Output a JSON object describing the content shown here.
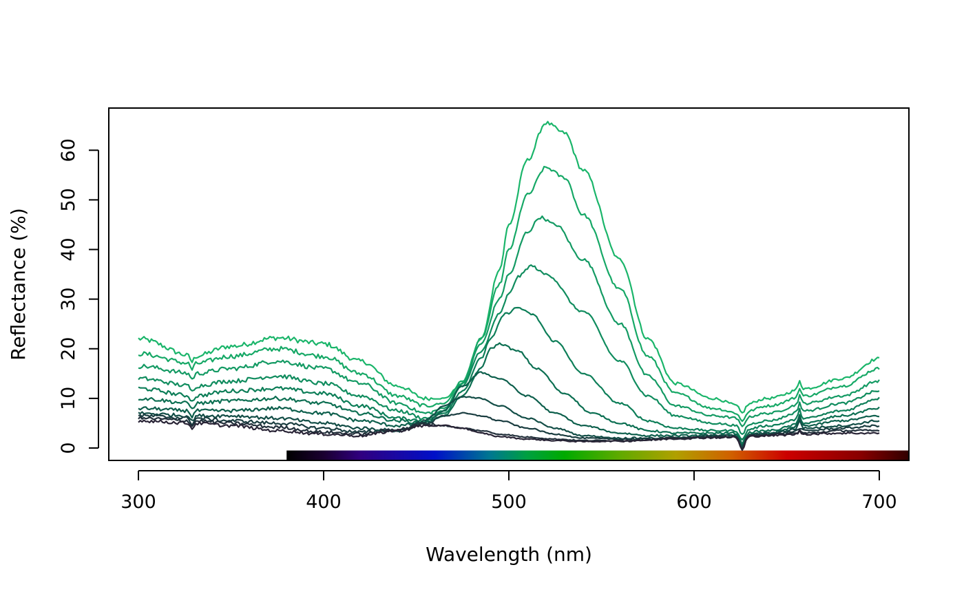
{
  "chart_data": {
    "type": "line",
    "title": "",
    "xlabel": "Wavelength (nm)",
    "ylabel": "Reflectance (%)",
    "xlim": [
      284,
      716
    ],
    "ylim": [
      -2.5,
      68.5
    ],
    "x_ticks": [
      300,
      400,
      500,
      600,
      700
    ],
    "x_tick_labels": [
      "300",
      "400",
      "500",
      "600",
      "700"
    ],
    "y_ticks": [
      0,
      10,
      20,
      30,
      40,
      50,
      60
    ],
    "y_tick_labels": [
      "0",
      "10",
      "20",
      "30",
      "40",
      "50",
      "60"
    ],
    "grid": false,
    "legend": "none",
    "x_range": [
      300,
      700
    ],
    "spectrum_bar": {
      "from_nm": 380,
      "to_nm": 716,
      "stops": [
        {
          "nm": 380,
          "color": "#000000"
        },
        {
          "nm": 400,
          "color": "#1a0030"
        },
        {
          "nm": 420,
          "color": "#300080"
        },
        {
          "nm": 460,
          "color": "#0010c8"
        },
        {
          "nm": 490,
          "color": "#007890"
        },
        {
          "nm": 510,
          "color": "#00a040"
        },
        {
          "nm": 530,
          "color": "#00aa00"
        },
        {
          "nm": 560,
          "color": "#60aa00"
        },
        {
          "nm": 590,
          "color": "#b0a000"
        },
        {
          "nm": 620,
          "color": "#d06000"
        },
        {
          "nm": 650,
          "color": "#cc0000"
        },
        {
          "nm": 690,
          "color": "#880000"
        },
        {
          "nm": 716,
          "color": "#300000"
        }
      ]
    },
    "series": [
      {
        "color": "#1ab56a",
        "values": [
          [
            300,
            22
          ],
          [
            330,
            18.5
          ],
          [
            350,
            20.5
          ],
          [
            375,
            22.2
          ],
          [
            400,
            21
          ],
          [
            420,
            17.5
          ],
          [
            440,
            12.5
          ],
          [
            455,
            10
          ],
          [
            465,
            10
          ],
          [
            475,
            13
          ],
          [
            485,
            22
          ],
          [
            495,
            36
          ],
          [
            500,
            45
          ],
          [
            510,
            58
          ],
          [
            520,
            65.5
          ],
          [
            530,
            63.5
          ],
          [
            540,
            56
          ],
          [
            560,
            38
          ],
          [
            575,
            22
          ],
          [
            590,
            13
          ],
          [
            610,
            10
          ],
          [
            625,
            8.5
          ],
          [
            640,
            10
          ],
          [
            660,
            12
          ],
          [
            680,
            14
          ],
          [
            700,
            18
          ]
        ]
      },
      {
        "color": "#16a866",
        "values": [
          [
            300,
            19
          ],
          [
            330,
            17
          ],
          [
            350,
            18.5
          ],
          [
            375,
            20
          ],
          [
            400,
            18.5
          ],
          [
            420,
            15
          ],
          [
            440,
            10.5
          ],
          [
            455,
            8.5
          ],
          [
            465,
            9
          ],
          [
            475,
            13.5
          ],
          [
            485,
            22
          ],
          [
            495,
            33
          ],
          [
            500,
            40
          ],
          [
            510,
            51
          ],
          [
            520,
            56.5
          ],
          [
            530,
            54.5
          ],
          [
            540,
            47
          ],
          [
            560,
            32
          ],
          [
            575,
            18.5
          ],
          [
            590,
            11
          ],
          [
            610,
            8
          ],
          [
            625,
            7
          ],
          [
            640,
            8.5
          ],
          [
            660,
            10.5
          ],
          [
            680,
            12.5
          ],
          [
            700,
            16
          ]
        ]
      },
      {
        "color": "#139a63",
        "values": [
          [
            300,
            16.5
          ],
          [
            330,
            15
          ],
          [
            350,
            16
          ],
          [
            375,
            17.5
          ],
          [
            400,
            16
          ],
          [
            420,
            13
          ],
          [
            440,
            9
          ],
          [
            455,
            7
          ],
          [
            465,
            8
          ],
          [
            475,
            13
          ],
          [
            485,
            21
          ],
          [
            495,
            30
          ],
          [
            500,
            35
          ],
          [
            510,
            43.5
          ],
          [
            517,
            46.5
          ],
          [
            525,
            45
          ],
          [
            540,
            38
          ],
          [
            560,
            25
          ],
          [
            575,
            14.5
          ],
          [
            590,
            8.5
          ],
          [
            610,
            6.5
          ],
          [
            625,
            6
          ],
          [
            640,
            7
          ],
          [
            660,
            9
          ],
          [
            680,
            10.5
          ],
          [
            700,
            13.5
          ]
        ]
      },
      {
        "color": "#108c5e",
        "values": [
          [
            300,
            14
          ],
          [
            330,
            12.5
          ],
          [
            350,
            13.5
          ],
          [
            375,
            14.5
          ],
          [
            400,
            13
          ],
          [
            420,
            10.5
          ],
          [
            440,
            7.5
          ],
          [
            455,
            6
          ],
          [
            465,
            7.5
          ],
          [
            475,
            12.5
          ],
          [
            485,
            19.5
          ],
          [
            495,
            27
          ],
          [
            500,
            31
          ],
          [
            505,
            34.5
          ],
          [
            512,
            36.7
          ],
          [
            520,
            35
          ],
          [
            540,
            27.5
          ],
          [
            560,
            17.5
          ],
          [
            575,
            10.5
          ],
          [
            590,
            6.5
          ],
          [
            610,
            5
          ],
          [
            625,
            4.5
          ],
          [
            640,
            5.5
          ],
          [
            660,
            7.5
          ],
          [
            680,
            9
          ],
          [
            700,
            11.5
          ]
        ]
      },
      {
        "color": "#0d7e58",
        "values": [
          [
            300,
            12
          ],
          [
            330,
            10.5
          ],
          [
            350,
            11.5
          ],
          [
            375,
            12
          ],
          [
            400,
            11
          ],
          [
            420,
            8.5
          ],
          [
            440,
            6
          ],
          [
            455,
            5.5
          ],
          [
            465,
            7
          ],
          [
            475,
            11.5
          ],
          [
            485,
            18
          ],
          [
            490,
            22
          ],
          [
            498,
            27
          ],
          [
            505,
            28.3
          ],
          [
            512,
            27
          ],
          [
            525,
            21.5
          ],
          [
            540,
            15
          ],
          [
            560,
            9
          ],
          [
            575,
            5.5
          ],
          [
            590,
            4
          ],
          [
            610,
            3.5
          ],
          [
            625,
            3.5
          ],
          [
            640,
            4.5
          ],
          [
            660,
            6
          ],
          [
            680,
            7.5
          ],
          [
            700,
            10
          ]
        ]
      },
      {
        "color": "#0c6f52",
        "values": [
          [
            300,
            10
          ],
          [
            330,
            9
          ],
          [
            350,
            9.5
          ],
          [
            375,
            10
          ],
          [
            400,
            9
          ],
          [
            420,
            7
          ],
          [
            440,
            5.5
          ],
          [
            455,
            5
          ],
          [
            465,
            6.5
          ],
          [
            475,
            10.5
          ],
          [
            485,
            16
          ],
          [
            490,
            20
          ],
          [
            495,
            21
          ],
          [
            505,
            19.5
          ],
          [
            515,
            16
          ],
          [
            530,
            11
          ],
          [
            545,
            7
          ],
          [
            560,
            5
          ],
          [
            575,
            3.5
          ],
          [
            590,
            3
          ],
          [
            610,
            3
          ],
          [
            625,
            3
          ],
          [
            640,
            3.5
          ],
          [
            660,
            5
          ],
          [
            680,
            6.5
          ],
          [
            700,
            8
          ]
        ]
      },
      {
        "color": "#0d5f4c",
        "values": [
          [
            300,
            8
          ],
          [
            330,
            7.5
          ],
          [
            350,
            7.5
          ],
          [
            375,
            8
          ],
          [
            400,
            7
          ],
          [
            420,
            5.5
          ],
          [
            440,
            4.5
          ],
          [
            455,
            5
          ],
          [
            465,
            7.5
          ],
          [
            475,
            12.5
          ],
          [
            485,
            15.2
          ],
          [
            495,
            14
          ],
          [
            510,
            10.5
          ],
          [
            525,
            7
          ],
          [
            540,
            4.5
          ],
          [
            560,
            3
          ],
          [
            575,
            2.5
          ],
          [
            590,
            2.5
          ],
          [
            610,
            2.5
          ],
          [
            625,
            2.5
          ],
          [
            640,
            3
          ],
          [
            660,
            4.5
          ],
          [
            680,
            5.5
          ],
          [
            700,
            6.5
          ]
        ]
      },
      {
        "color": "#124d46",
        "values": [
          [
            300,
            7
          ],
          [
            330,
            6.5
          ],
          [
            350,
            6.5
          ],
          [
            375,
            6
          ],
          [
            400,
            5
          ],
          [
            420,
            4
          ],
          [
            440,
            3.5
          ],
          [
            455,
            5.5
          ],
          [
            465,
            8.5
          ],
          [
            475,
            10.3
          ],
          [
            485,
            10
          ],
          [
            495,
            8.5
          ],
          [
            510,
            6
          ],
          [
            525,
            4
          ],
          [
            540,
            2.5
          ],
          [
            560,
            2
          ],
          [
            575,
            2
          ],
          [
            590,
            2
          ],
          [
            610,
            2.5
          ],
          [
            625,
            2.5
          ],
          [
            640,
            3
          ],
          [
            660,
            4
          ],
          [
            680,
            4.5
          ],
          [
            700,
            5.5
          ]
        ]
      },
      {
        "color": "#1a3d40",
        "values": [
          [
            300,
            6.5
          ],
          [
            330,
            6
          ],
          [
            350,
            5.5
          ],
          [
            375,
            5
          ],
          [
            400,
            4
          ],
          [
            420,
            3.2
          ],
          [
            440,
            3.5
          ],
          [
            455,
            5
          ],
          [
            465,
            6.5
          ],
          [
            475,
            7
          ],
          [
            485,
            6.5
          ],
          [
            495,
            5.5
          ],
          [
            510,
            4
          ],
          [
            525,
            2.8
          ],
          [
            540,
            2
          ],
          [
            560,
            1.8
          ],
          [
            575,
            1.8
          ],
          [
            590,
            2
          ],
          [
            610,
            2.2
          ],
          [
            625,
            2.3
          ],
          [
            640,
            2.8
          ],
          [
            660,
            3.5
          ],
          [
            680,
            4
          ],
          [
            700,
            4.5
          ]
        ]
      },
      {
        "color": "#212f3a",
        "values": [
          [
            300,
            6
          ],
          [
            330,
            5.5
          ],
          [
            350,
            5
          ],
          [
            375,
            4.2
          ],
          [
            400,
            3.2
          ],
          [
            420,
            2.8
          ],
          [
            440,
            3.8
          ],
          [
            455,
            4.8
          ],
          [
            465,
            4.5
          ],
          [
            475,
            4
          ],
          [
            485,
            3.5
          ],
          [
            495,
            2.8
          ],
          [
            510,
            2.2
          ],
          [
            525,
            1.8
          ],
          [
            540,
            1.5
          ],
          [
            560,
            1.5
          ],
          [
            575,
            1.7
          ],
          [
            590,
            2
          ],
          [
            610,
            2.2
          ],
          [
            625,
            2.3
          ],
          [
            640,
            2.7
          ],
          [
            660,
            3
          ],
          [
            680,
            3.5
          ],
          [
            700,
            3.5
          ]
        ]
      },
      {
        "color": "#292436",
        "values": [
          [
            300,
            5.5
          ],
          [
            330,
            5
          ],
          [
            350,
            4.5
          ],
          [
            375,
            3.5
          ],
          [
            400,
            2.8
          ],
          [
            420,
            2.5
          ],
          [
            440,
            3.5
          ],
          [
            455,
            4.5
          ],
          [
            465,
            4.5
          ],
          [
            475,
            4
          ],
          [
            485,
            3
          ],
          [
            495,
            2.3
          ],
          [
            510,
            1.8
          ],
          [
            525,
            1.5
          ],
          [
            540,
            1.3
          ],
          [
            560,
            1.4
          ],
          [
            575,
            1.6
          ],
          [
            590,
            1.9
          ],
          [
            610,
            2.1
          ],
          [
            625,
            2.2
          ],
          [
            640,
            2.5
          ],
          [
            660,
            2.8
          ],
          [
            680,
            3
          ],
          [
            700,
            3
          ]
        ]
      }
    ]
  }
}
